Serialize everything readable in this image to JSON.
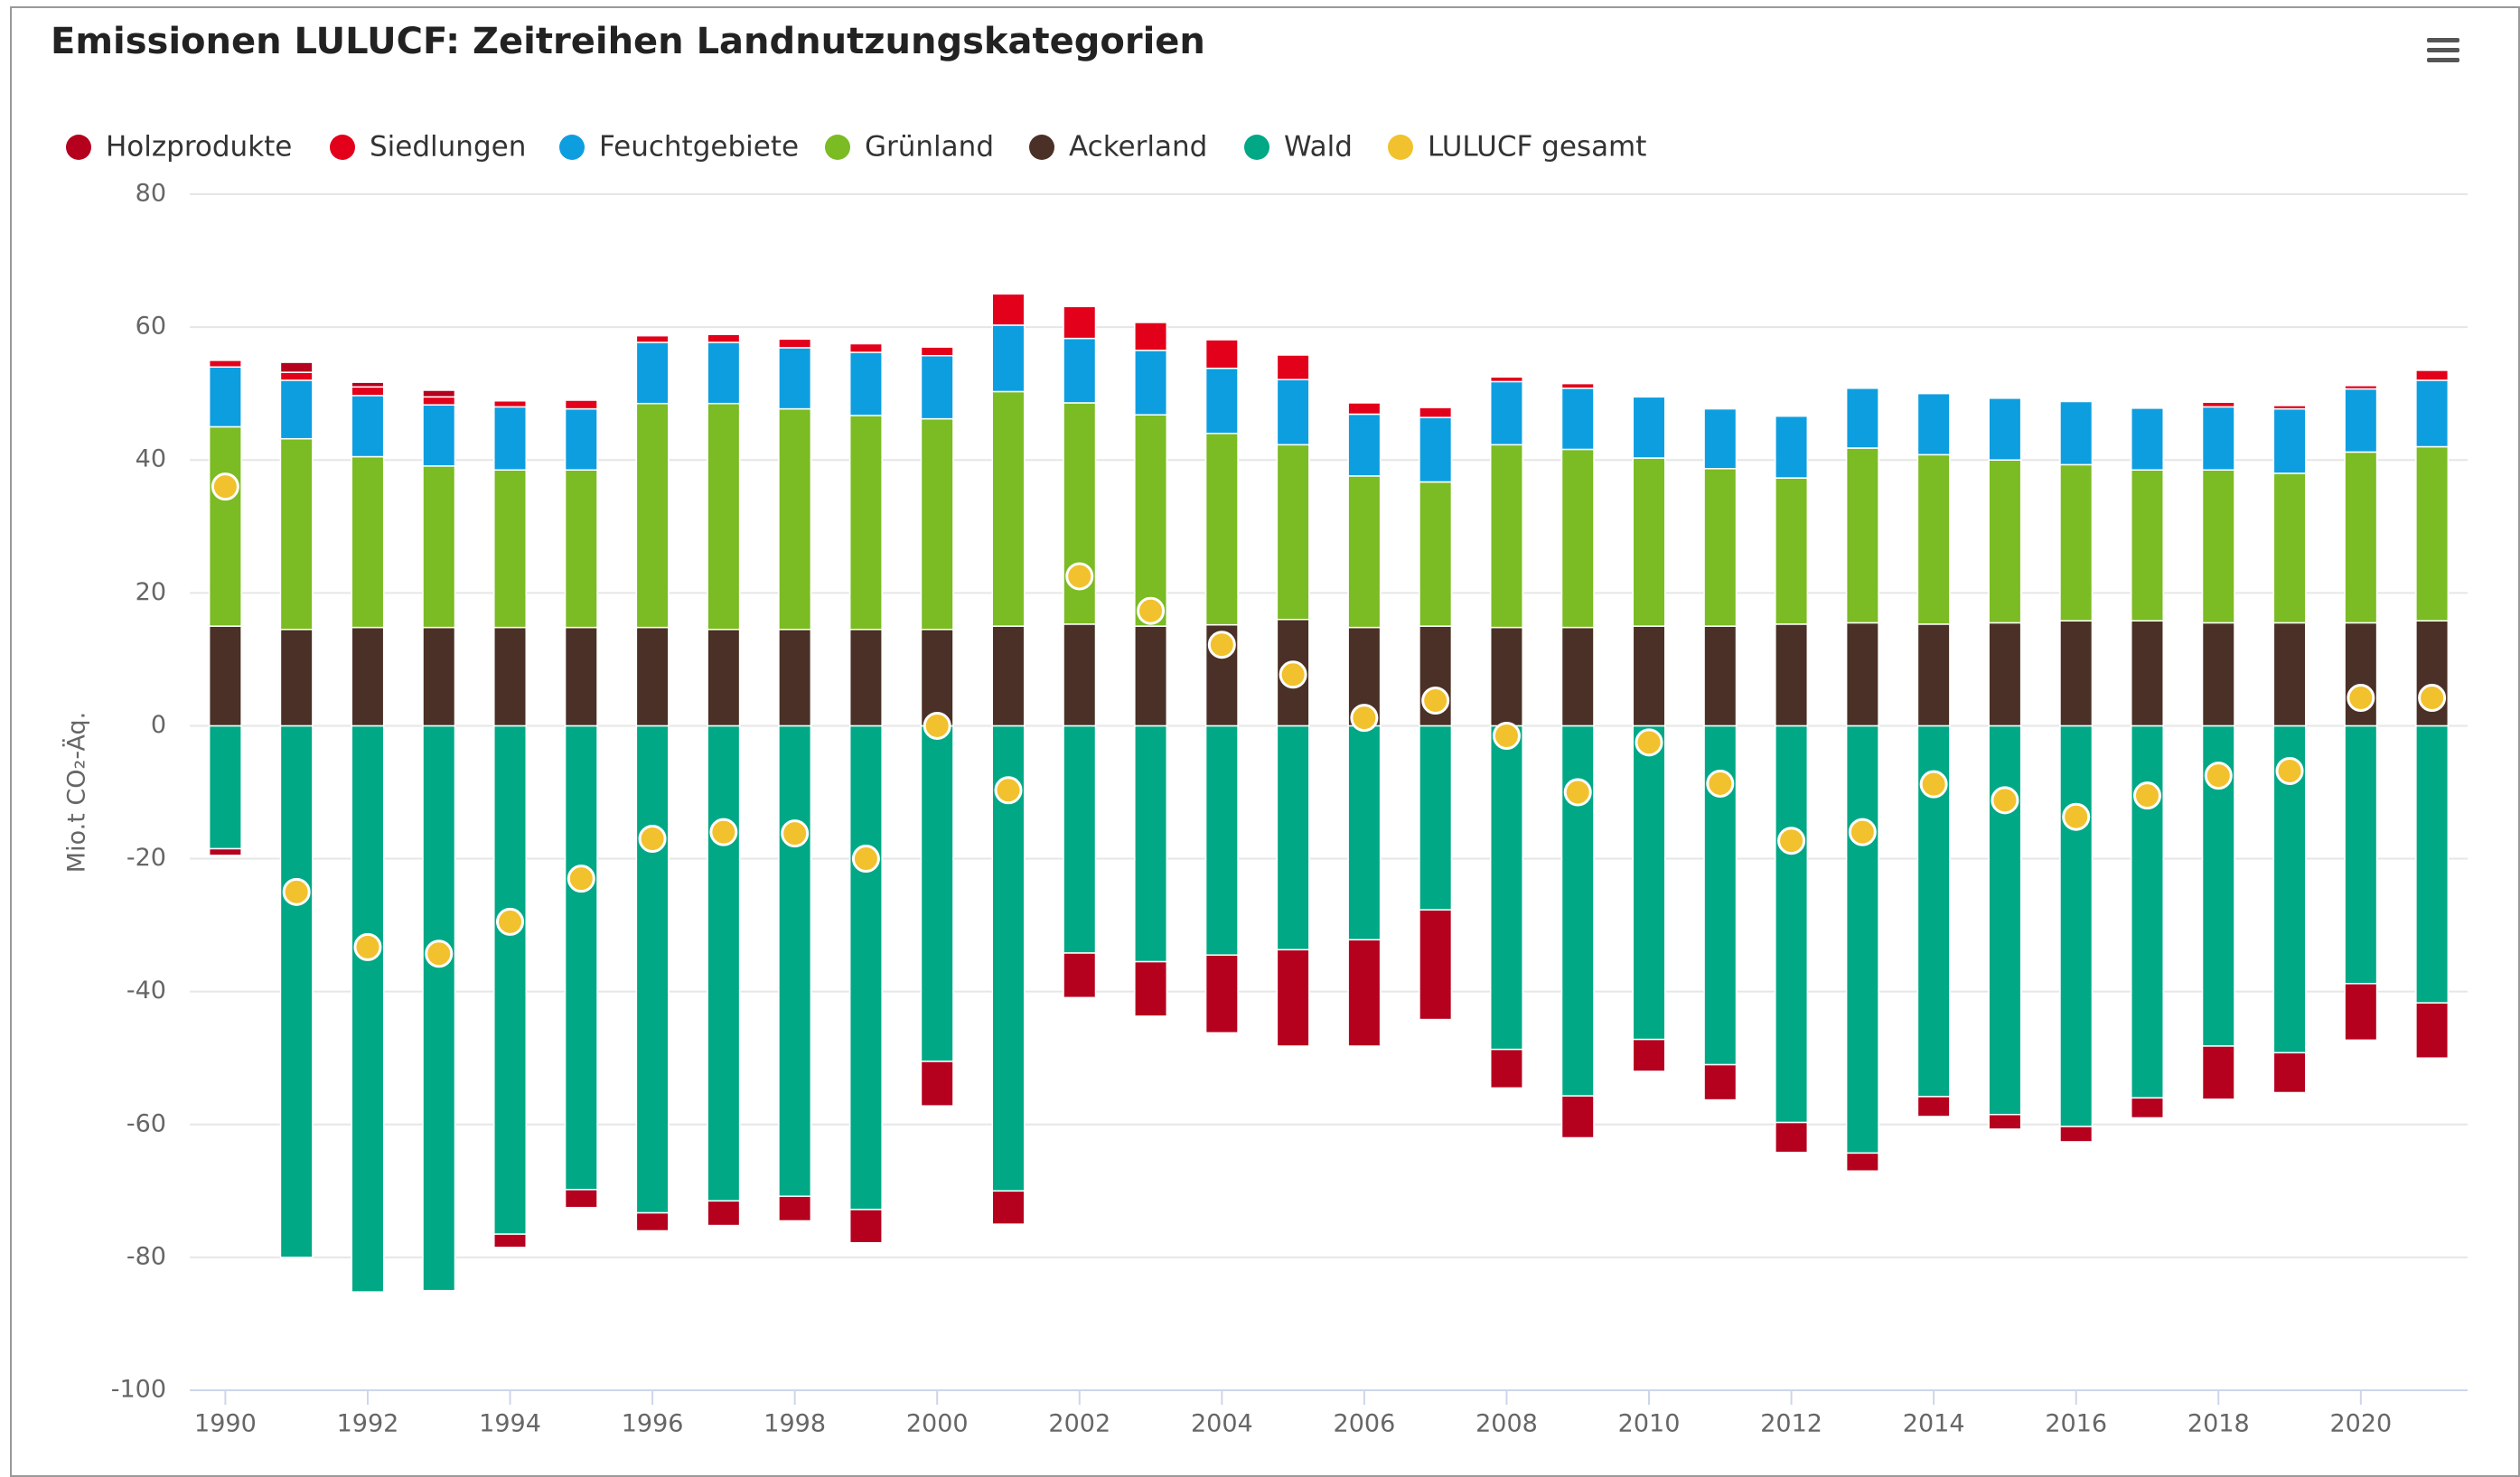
{
  "chart_data": {
    "type": "bar",
    "stacked": true,
    "title": "Emissionen LULUCF: Zeitreihen Landnutzungskategorien",
    "y_label": "Mio.t CO₂-Äq.",
    "categories": [
      "1990",
      null,
      "1992",
      null,
      "1994",
      null,
      "1996",
      null,
      "1998",
      null,
      "2000",
      null,
      "2002",
      null,
      "2004",
      null,
      "2006",
      null,
      "2008",
      null,
      "2010",
      null,
      "2012",
      null,
      "2014",
      null,
      "2016",
      null,
      "2018",
      null,
      "2020",
      null
    ],
    "ylim": [
      -100,
      80
    ],
    "yticks": [
      -100,
      -80,
      -60,
      -40,
      -20,
      0,
      20,
      40,
      60,
      80
    ],
    "grid": true,
    "legend": "top-left",
    "series": [
      {
        "name": "Holzprodukte",
        "color": "#b5001e",
        "values": [
          -1,
          1.5,
          0.7,
          1,
          -2,
          -2.7,
          -2.7,
          -3.7,
          -3.7,
          -5,
          -6.7,
          -5,
          -6.7,
          -8.2,
          -11.7,
          -14.5,
          -16,
          -16.5,
          -5.8,
          -6.3,
          -4.8,
          -5.3,
          -4.5,
          -2.7,
          -3,
          -2.2,
          -2.3,
          -3,
          -8,
          -6,
          -8.5,
          -8.3
        ]
      },
      {
        "name": "Siedlungen",
        "color": "#e3001b",
        "values": [
          1,
          1.2,
          1.3,
          1.2,
          0.9,
          1.3,
          1,
          1.2,
          1.3,
          1.3,
          1.3,
          4.7,
          4.8,
          4.2,
          4.3,
          3.7,
          1.7,
          1.5,
          0.7,
          0.7,
          0,
          0,
          0,
          0,
          0,
          0,
          0,
          0,
          0.7,
          0.5,
          0.5,
          1.5
        ]
      },
      {
        "name": "Feuchtgebiete",
        "color": "#0d9ee0",
        "values": [
          9,
          8.8,
          9.2,
          9.2,
          9.5,
          9.2,
          9.2,
          9.2,
          9.2,
          9.5,
          9.5,
          10,
          9.7,
          9.7,
          9.8,
          9.8,
          9.3,
          9.7,
          9.5,
          9.2,
          9.2,
          9,
          9.3,
          9,
          9.2,
          9.3,
          9.5,
          9.3,
          9.5,
          9.7,
          9.5,
          10
        ]
      },
      {
        "name": "Grünland",
        "color": "#7bbb23",
        "values": [
          30,
          28.7,
          25.7,
          24.3,
          23.7,
          23.7,
          33.7,
          34,
          33.2,
          32.2,
          31.7,
          35.3,
          33.3,
          31.8,
          28.8,
          26.3,
          22.8,
          21.7,
          27.5,
          26.8,
          25.3,
          23.7,
          22,
          26.3,
          25.5,
          24.5,
          23.5,
          22.7,
          23,
          22.5,
          25.7,
          26.2
        ]
      },
      {
        "name": "Ackerland",
        "color": "#4a3026",
        "values": [
          15,
          14.5,
          14.8,
          14.8,
          14.8,
          14.8,
          14.8,
          14.5,
          14.5,
          14.5,
          14.5,
          15,
          15.3,
          15,
          15.2,
          16,
          14.8,
          15,
          14.8,
          14.8,
          15,
          15,
          15.3,
          15.5,
          15.3,
          15.5,
          15.8,
          15.8,
          15.5,
          15.5,
          15.5,
          15.8
        ]
      },
      {
        "name": "Wald",
        "color": "#00a886",
        "values": [
          -18.5,
          -80,
          -85.2,
          -85,
          -76.5,
          -69.8,
          -73.3,
          -71.5,
          -70.8,
          -72.8,
          -50.5,
          -70,
          -34.2,
          -35.5,
          -34.5,
          -33.7,
          -32.2,
          -27.7,
          -48.7,
          -55.7,
          -47.2,
          -51,
          -59.7,
          -64.3,
          -55.8,
          -58.5,
          -60.3,
          -56,
          -48.2,
          -49.2,
          -38.8,
          -41.7
        ]
      },
      {
        "name": "LULUCF gesamt",
        "color": "#f2c12e",
        "type": "scatter",
        "values": [
          36,
          -25,
          -33.3,
          -34.3,
          -29.5,
          -23,
          -17,
          -16,
          -16.2,
          -20,
          0,
          -9.7,
          22.5,
          17.3,
          12.2,
          7.7,
          1.2,
          3.8,
          -1.5,
          -10,
          -2.5,
          -8.7,
          -17.3,
          -16,
          -8.8,
          -11.2,
          -13.7,
          -10.5,
          -7.5,
          -6.8,
          4.2,
          4.2
        ]
      }
    ]
  }
}
